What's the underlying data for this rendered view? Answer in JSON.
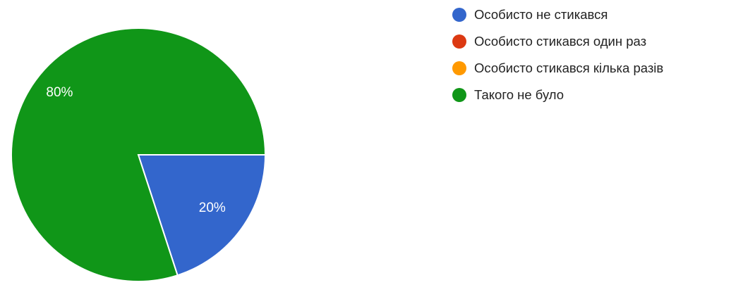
{
  "chart_data": {
    "type": "pie",
    "slices": [
      {
        "label": "Особисто не стикався",
        "value": 20,
        "display": "20%",
        "color": "#3366cc"
      },
      {
        "label": "Особисто стикався один раз",
        "value": 0,
        "display": "",
        "color": "#dc3912"
      },
      {
        "label": "Особисто стикався кілька разів",
        "value": 0,
        "display": "",
        "color": "#ff9900"
      },
      {
        "label": "Такого не було",
        "value": 80,
        "display": "80%",
        "color": "#109618"
      }
    ],
    "start_angle_deg": 90,
    "legend_position": "right"
  }
}
